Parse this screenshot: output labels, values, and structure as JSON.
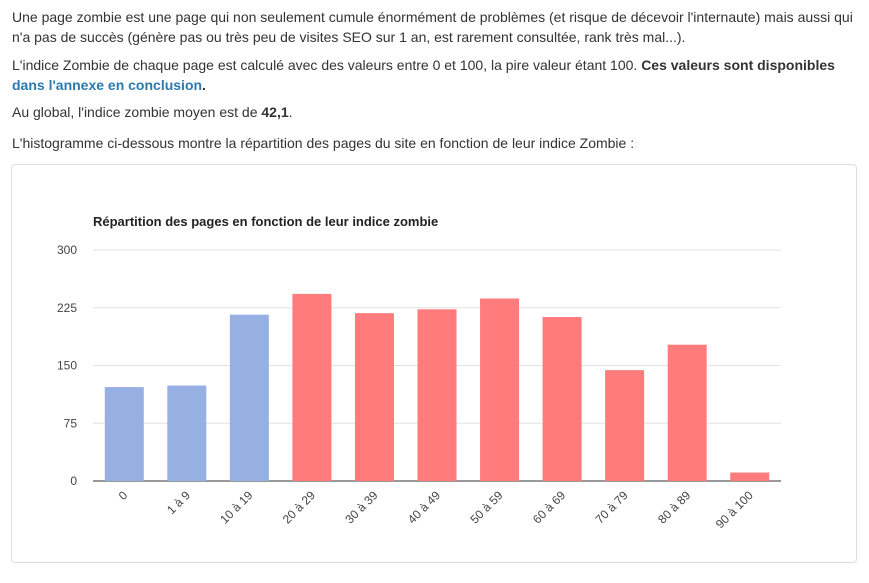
{
  "content": {
    "p1": "Une page zombie est une page qui non seulement cumule énormément de problèmes (et risque de décevoir l'internaute) mais aussi qui n'a pas de succès (génère pas ou très peu de visites SEO sur 1 an, est rarement consultée, rank très mal...).",
    "p2_text": "L'indice Zombie de chaque page est calculé avec des valeurs entre 0 et 100, la pire valeur étant 100. ",
    "p2_bold": "Ces valeurs sont disponibles ",
    "p2_link": "dans l'annexe en conclusion",
    "p2_end": ".",
    "p3_text": "Au global, l'indice zombie moyen est de ",
    "p3_value": "42,1",
    "p3_end": ".",
    "p4": "L'histogramme ci-dessous montre la répartition des pages du site en fonction de leur indice Zombie :"
  },
  "chart_data": {
    "type": "bar",
    "title": "Répartition des pages en fonction de leur indice zombie",
    "categories": [
      "0",
      "1 à 9",
      "10 à 19",
      "20 à 29",
      "30 à 39",
      "40 à 49",
      "50 à 59",
      "60 à 69",
      "70 à 79",
      "80 à 89",
      "90 à 100"
    ],
    "values": [
      122,
      124,
      216,
      243,
      218,
      223,
      237,
      213,
      144,
      177,
      11
    ],
    "colors": [
      "#97b0e3",
      "#97b0e3",
      "#97b0e3",
      "#ff7b7c",
      "#ff7b7c",
      "#ff7b7c",
      "#ff7b7c",
      "#ff7b7c",
      "#ff7b7c",
      "#ff7b7c",
      "#ff7b7c"
    ],
    "yticks": [
      "0",
      "75",
      "150",
      "225",
      "300"
    ],
    "ylim": [
      0,
      300
    ],
    "grid": true,
    "legend": "none"
  }
}
